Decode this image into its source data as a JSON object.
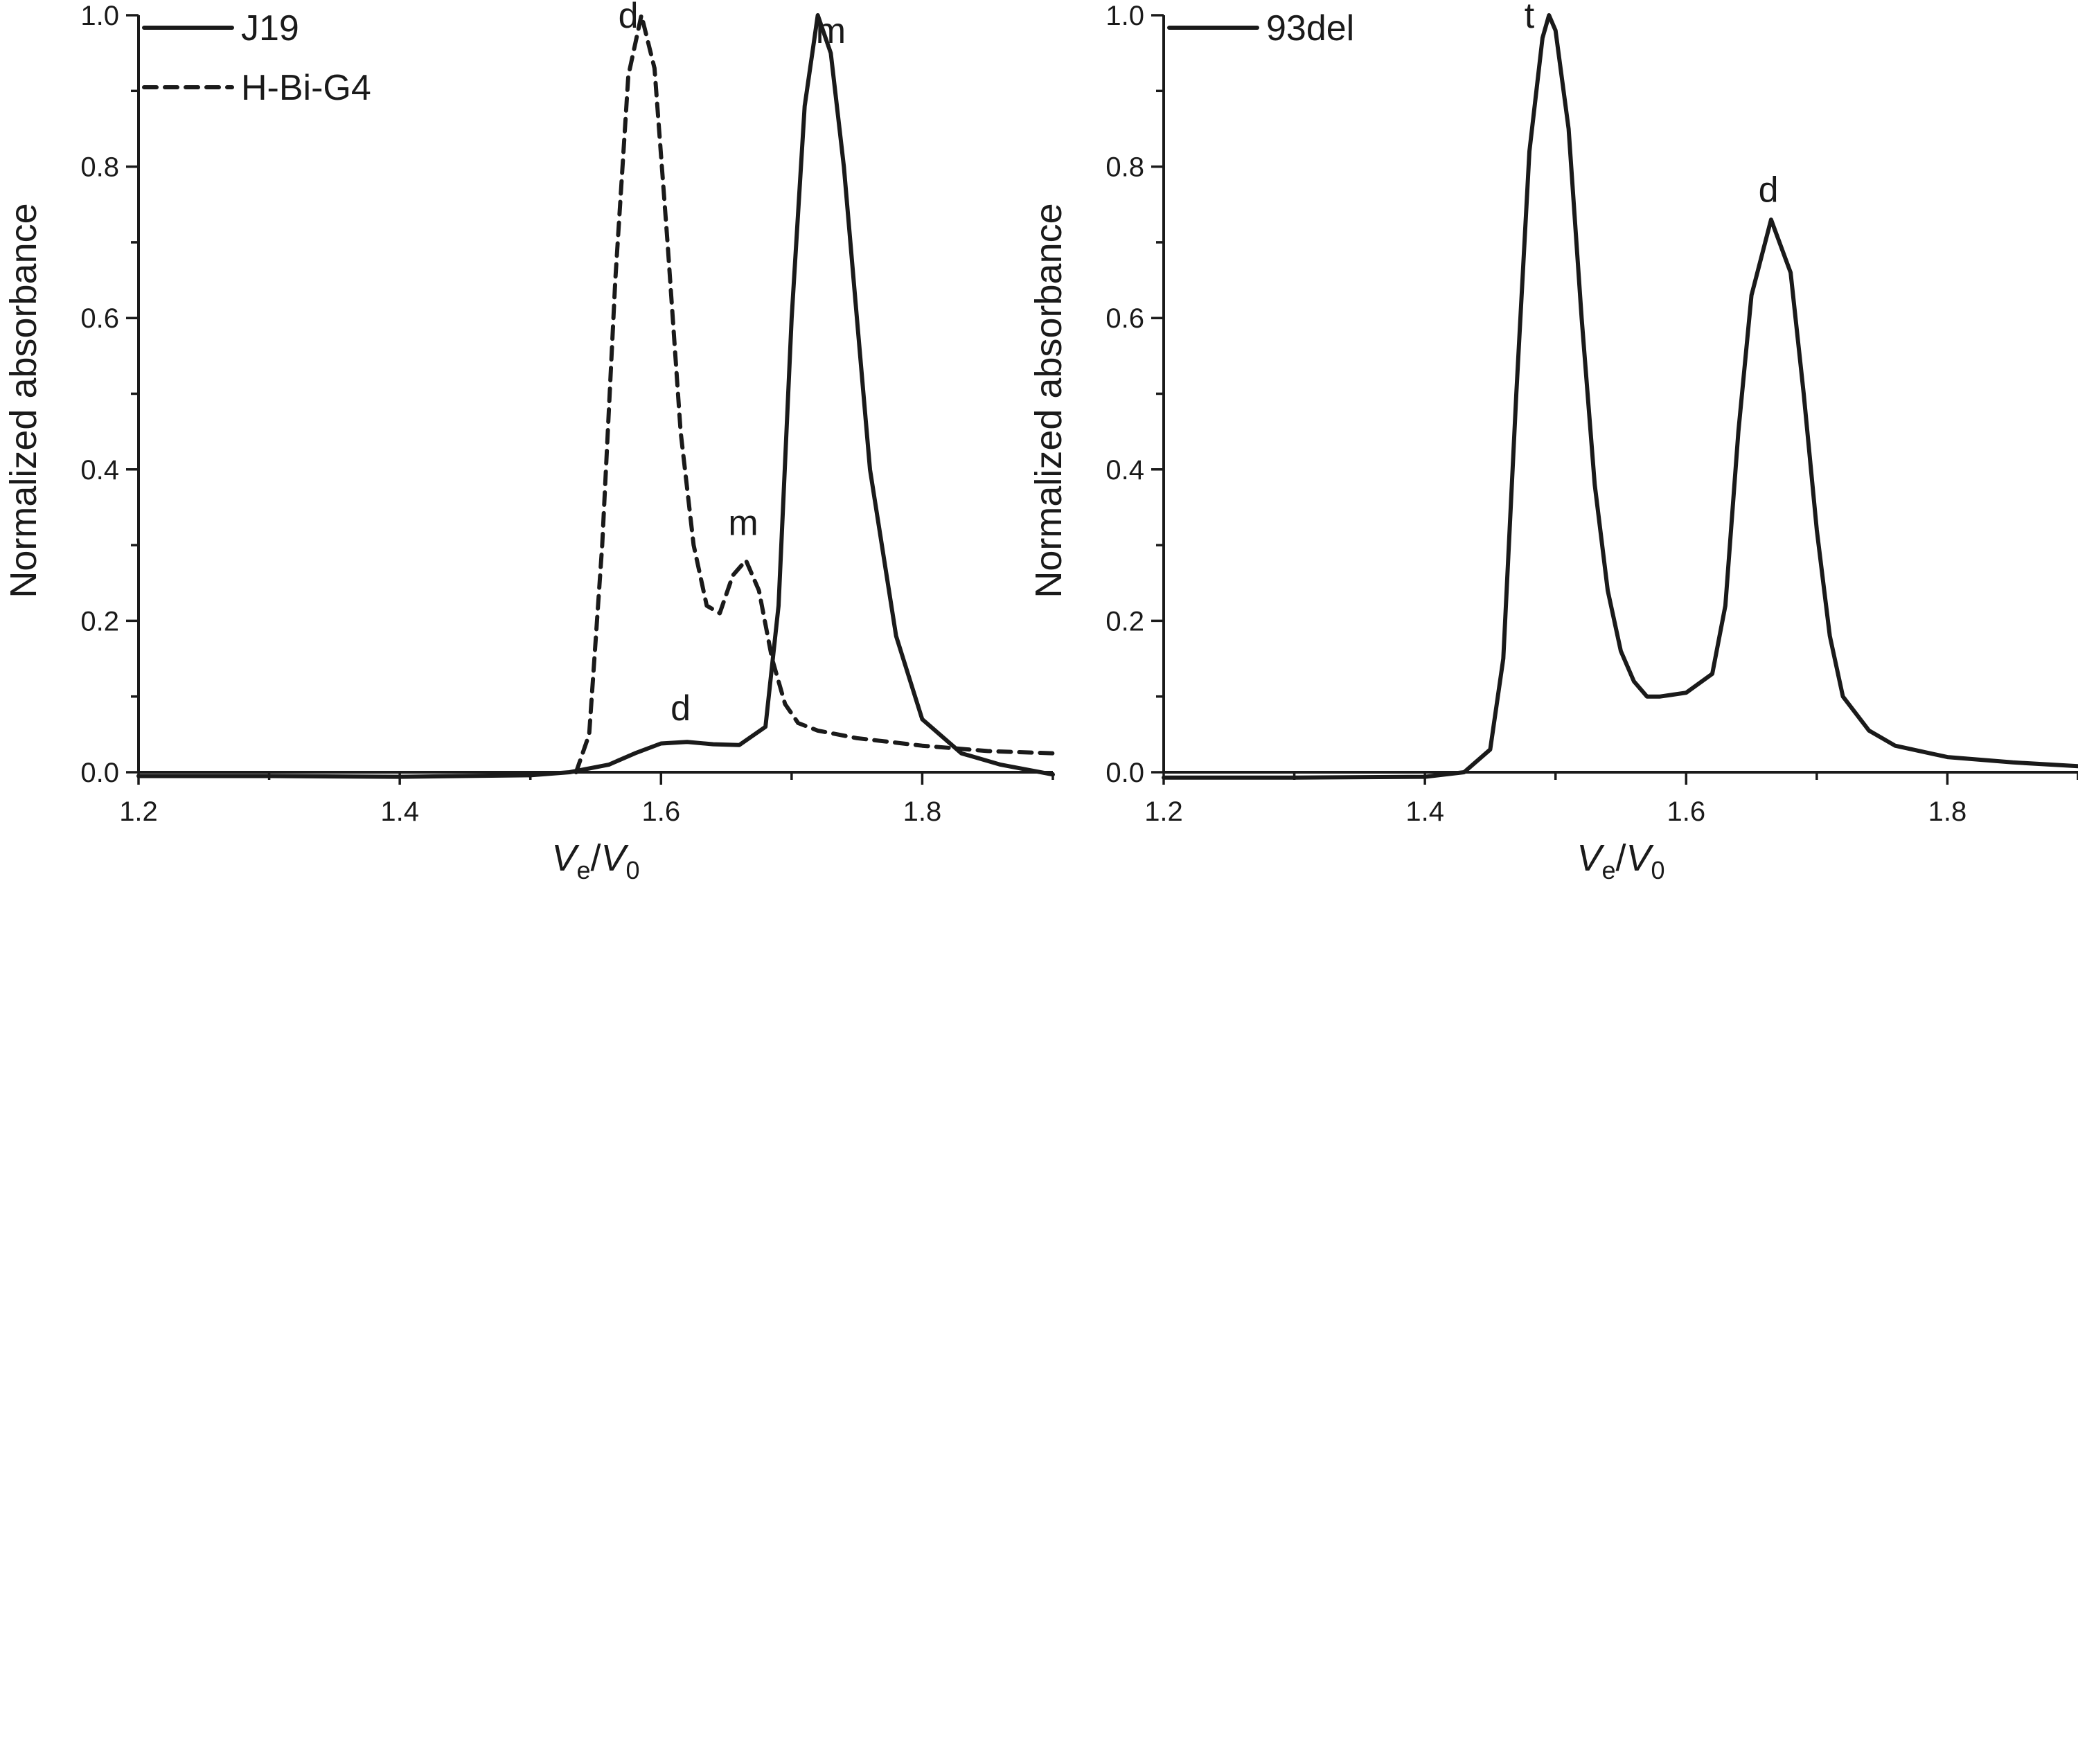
{
  "chart_data": [
    {
      "type": "line",
      "panel": "left",
      "xlabel": {
        "main": "V",
        "sub": "e",
        "sep": "/",
        "main2": "V",
        "sub2": "0"
      },
      "ylabel": "Normalized absorbance",
      "xlim": [
        1.2,
        1.9
      ],
      "ylim": [
        0.0,
        1.0
      ],
      "x_ticks": [
        "1.2",
        "1.4",
        "1.6",
        "1.8"
      ],
      "y_ticks": [
        "0.0",
        "0.2",
        "0.4",
        "0.6",
        "0.8",
        "1.0"
      ],
      "legend": "top-left",
      "series": [
        {
          "name": "J19",
          "style": "solid",
          "x": [
            1.2,
            1.3,
            1.4,
            1.5,
            1.53,
            1.56,
            1.58,
            1.6,
            1.62,
            1.64,
            1.66,
            1.68,
            1.69,
            1.7,
            1.71,
            1.72,
            1.73,
            1.74,
            1.75,
            1.76,
            1.78,
            1.8,
            1.83,
            1.86,
            1.9
          ],
          "y": [
            -0.005,
            -0.005,
            -0.006,
            -0.004,
            0.0,
            0.01,
            0.025,
            0.038,
            0.04,
            0.037,
            0.036,
            0.06,
            0.22,
            0.6,
            0.88,
            1.0,
            0.95,
            0.8,
            0.6,
            0.4,
            0.18,
            0.07,
            0.025,
            0.01,
            -0.003
          ]
        },
        {
          "name": "H-Bi-G4",
          "style": "dashed",
          "x": [
            1.535,
            1.545,
            1.555,
            1.565,
            1.575,
            1.585,
            1.595,
            1.605,
            1.615,
            1.625,
            1.635,
            1.645,
            1.655,
            1.665,
            1.675,
            1.685,
            1.695,
            1.705,
            1.72,
            1.75,
            1.8,
            1.85,
            1.9
          ],
          "y": [
            0.0,
            0.05,
            0.3,
            0.65,
            0.92,
            1.0,
            0.93,
            0.7,
            0.45,
            0.3,
            0.22,
            0.21,
            0.26,
            0.28,
            0.24,
            0.15,
            0.09,
            0.065,
            0.055,
            0.045,
            0.035,
            0.028,
            0.025
          ]
        }
      ],
      "annotations": [
        {
          "text": "d",
          "x": 1.575,
          "y": 1.0
        },
        {
          "text": "m",
          "x": 1.73,
          "y": 0.98
        },
        {
          "text": "m",
          "x": 1.663,
          "y": 0.33
        },
        {
          "text": "d",
          "x": 1.615,
          "y": 0.085
        }
      ]
    },
    {
      "type": "line",
      "panel": "right",
      "xlabel": {
        "main": "V",
        "sub": "e",
        "sep": "/",
        "main2": "V",
        "sub2": "0"
      },
      "ylabel": "Normalized absorbance",
      "xlim": [
        1.2,
        1.9
      ],
      "ylim": [
        0.0,
        1.0
      ],
      "x_ticks": [
        "1.2",
        "1.4",
        "1.6",
        "1.8"
      ],
      "y_ticks": [
        "0.0",
        "0.2",
        "0.4",
        "0.6",
        "0.8",
        "1.0"
      ],
      "legend": "top-left",
      "series": [
        {
          "name": "93del",
          "style": "solid",
          "x": [
            1.2,
            1.3,
            1.4,
            1.43,
            1.45,
            1.46,
            1.47,
            1.48,
            1.49,
            1.495,
            1.5,
            1.51,
            1.52,
            1.53,
            1.54,
            1.55,
            1.56,
            1.57,
            1.58,
            1.6,
            1.62,
            1.63,
            1.64,
            1.65,
            1.665,
            1.68,
            1.69,
            1.7,
            1.71,
            1.72,
            1.74,
            1.76,
            1.8,
            1.85,
            1.9
          ],
          "y": [
            -0.007,
            -0.007,
            -0.006,
            0.0,
            0.03,
            0.15,
            0.5,
            0.82,
            0.97,
            1.0,
            0.98,
            0.85,
            0.6,
            0.38,
            0.24,
            0.16,
            0.12,
            0.1,
            0.1,
            0.105,
            0.13,
            0.22,
            0.45,
            0.63,
            0.73,
            0.66,
            0.5,
            0.32,
            0.18,
            0.1,
            0.055,
            0.035,
            0.02,
            0.013,
            0.008
          ]
        }
      ],
      "annotations": [
        {
          "text": "t",
          "x": 1.48,
          "y": 1.0
        },
        {
          "text": "d",
          "x": 1.663,
          "y": 0.77
        }
      ]
    }
  ]
}
